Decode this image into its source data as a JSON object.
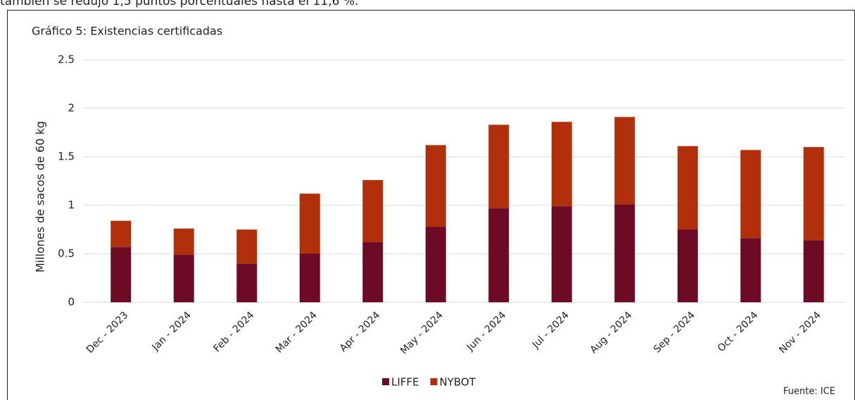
{
  "page_text": "también se redujo 1,5 puntos porcentuales hasta el 11,6 %.",
  "chart_data": {
    "type": "stacked_bar",
    "title": "Gráfico 5: Existencias certificadas",
    "y_label": "Millones de sacos de 60 kg",
    "source": "Fuente: ICE",
    "categories": [
      "Dec - 2023",
      "Jan - 2024",
      "Feb - 2024",
      "Mar - 2024",
      "Apr - 2024",
      "May - 2024",
      "Jun - 2024",
      "Jul - 2024",
      "Aug - 2024",
      "Sep - 2024",
      "Oct - 2024",
      "Nov - 2024"
    ],
    "series": [
      {
        "name": "LIFFE",
        "color": "#6d0a26",
        "values": [
          0.57,
          0.49,
          0.4,
          0.5,
          0.62,
          0.78,
          0.97,
          0.99,
          1.01,
          0.75,
          0.66,
          0.64
        ]
      },
      {
        "name": "NYBOT",
        "color": "#b0300b",
        "values": [
          0.27,
          0.27,
          0.35,
          0.62,
          0.64,
          0.84,
          0.86,
          0.87,
          0.9,
          0.86,
          0.91,
          0.96
        ]
      }
    ],
    "ylim": [
      0,
      2.5
    ],
    "yticks": [
      0,
      0.5,
      1,
      1.5,
      2,
      2.5
    ],
    "grid": true,
    "legend": "bottom"
  }
}
